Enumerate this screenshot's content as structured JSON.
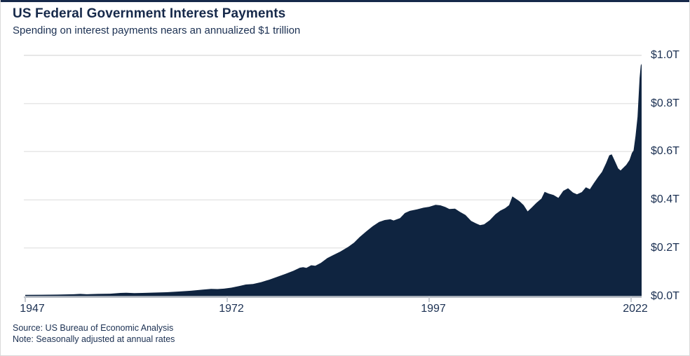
{
  "card": {
    "title": "US Federal Government Interest Payments",
    "subtitle": "Spending on interest payments nears an annualized $1 trillion",
    "source_line": "Source: US Bureau of Economic Analysis",
    "note_line": "Note: Seasonally adjusted at annual rates"
  },
  "colors": {
    "accent_bar": "#16294a",
    "area_fill": "#0f2440",
    "text_navy": "#1b3052",
    "gridline": "#e7e7e7",
    "axis_line": "#b8bdc4",
    "tick_mark": "#c7cbd1",
    "card_border": "#d9d9d9"
  },
  "chart_data": {
    "type": "area",
    "title": "US Federal Government Interest Payments",
    "subtitle": "Spending on interest payments nears an annualized $1 trillion",
    "unit": "trillions of US dollars, seasonally adjusted annual rate",
    "grid": "horizontal-on",
    "legend": "none",
    "x_axis": {
      "range": [
        1947,
        2023.3
      ],
      "ticks": [
        {
          "label": "1947",
          "year": 1947
        },
        {
          "label": "1972",
          "year": 1972
        },
        {
          "label": "1997",
          "year": 1997
        },
        {
          "label": "2022",
          "year": 2022
        }
      ]
    },
    "y_axis": {
      "range": [
        0,
        1.0
      ],
      "ticks": [
        {
          "label": "$0.0T",
          "value": 0.0
        },
        {
          "label": "$0.2T",
          "value": 0.2
        },
        {
          "label": "$0.4T",
          "value": 0.4
        },
        {
          "label": "$0.6T",
          "value": 0.6
        },
        {
          "label": "$0.8T",
          "value": 0.8
        },
        {
          "label": "$1.0T",
          "value": 1.0
        }
      ]
    },
    "series": [
      {
        "name": "Federal government interest payments",
        "points": [
          [
            1947.0,
            0.005
          ],
          [
            1949.0,
            0.0055
          ],
          [
            1951.0,
            0.006
          ],
          [
            1953.0,
            0.0075
          ],
          [
            1953.8,
            0.009
          ],
          [
            1954.6,
            0.0075
          ],
          [
            1956.0,
            0.009
          ],
          [
            1957.5,
            0.01
          ],
          [
            1958.8,
            0.013
          ],
          [
            1959.5,
            0.014
          ],
          [
            1960.5,
            0.0125
          ],
          [
            1961.5,
            0.013
          ],
          [
            1963.0,
            0.0145
          ],
          [
            1964.5,
            0.016
          ],
          [
            1966.0,
            0.019
          ],
          [
            1967.5,
            0.022
          ],
          [
            1969.0,
            0.027
          ],
          [
            1970.0,
            0.03
          ],
          [
            1970.8,
            0.029
          ],
          [
            1971.6,
            0.031
          ],
          [
            1972.5,
            0.035
          ],
          [
            1973.5,
            0.042
          ],
          [
            1974.3,
            0.048
          ],
          [
            1975.2,
            0.05
          ],
          [
            1976.2,
            0.058
          ],
          [
            1977.2,
            0.068
          ],
          [
            1978.2,
            0.08
          ],
          [
            1979.2,
            0.092
          ],
          [
            1980.2,
            0.105
          ],
          [
            1981.0,
            0.118
          ],
          [
            1981.4,
            0.12
          ],
          [
            1981.8,
            0.117
          ],
          [
            1982.4,
            0.128
          ],
          [
            1982.9,
            0.126
          ],
          [
            1983.6,
            0.138
          ],
          [
            1984.4,
            0.158
          ],
          [
            1985.1,
            0.17
          ],
          [
            1986.0,
            0.185
          ],
          [
            1987.0,
            0.205
          ],
          [
            1987.7,
            0.222
          ],
          [
            1988.4,
            0.245
          ],
          [
            1989.2,
            0.268
          ],
          [
            1990.0,
            0.29
          ],
          [
            1990.8,
            0.308
          ],
          [
            1991.5,
            0.316
          ],
          [
            1992.2,
            0.319
          ],
          [
            1992.6,
            0.314
          ],
          [
            1993.4,
            0.324
          ],
          [
            1994.0,
            0.345
          ],
          [
            1994.6,
            0.354
          ],
          [
            1995.5,
            0.36
          ],
          [
            1996.3,
            0.367
          ],
          [
            1997.0,
            0.371
          ],
          [
            1997.8,
            0.379
          ],
          [
            1998.4,
            0.377
          ],
          [
            1999.0,
            0.37
          ],
          [
            1999.5,
            0.362
          ],
          [
            2000.2,
            0.363
          ],
          [
            2000.8,
            0.35
          ],
          [
            2001.5,
            0.337
          ],
          [
            2002.2,
            0.312
          ],
          [
            2002.8,
            0.302
          ],
          [
            2003.3,
            0.295
          ],
          [
            2003.8,
            0.298
          ],
          [
            2004.5,
            0.315
          ],
          [
            2005.2,
            0.34
          ],
          [
            2005.8,
            0.355
          ],
          [
            2006.4,
            0.365
          ],
          [
            2006.9,
            0.378
          ],
          [
            2007.3,
            0.414
          ],
          [
            2007.7,
            0.405
          ],
          [
            2008.2,
            0.394
          ],
          [
            2008.7,
            0.378
          ],
          [
            2009.2,
            0.352
          ],
          [
            2009.7,
            0.368
          ],
          [
            2010.3,
            0.388
          ],
          [
            2010.9,
            0.405
          ],
          [
            2011.3,
            0.433
          ],
          [
            2011.8,
            0.426
          ],
          [
            2012.4,
            0.42
          ],
          [
            2013.0,
            0.408
          ],
          [
            2013.6,
            0.437
          ],
          [
            2014.2,
            0.448
          ],
          [
            2014.8,
            0.43
          ],
          [
            2015.3,
            0.423
          ],
          [
            2015.9,
            0.432
          ],
          [
            2016.4,
            0.452
          ],
          [
            2016.9,
            0.444
          ],
          [
            2017.4,
            0.47
          ],
          [
            2017.9,
            0.494
          ],
          [
            2018.4,
            0.516
          ],
          [
            2018.9,
            0.552
          ],
          [
            2019.3,
            0.585
          ],
          [
            2019.6,
            0.589
          ],
          [
            2020.0,
            0.56
          ],
          [
            2020.4,
            0.53
          ],
          [
            2020.7,
            0.522
          ],
          [
            2021.0,
            0.532
          ],
          [
            2021.4,
            0.545
          ],
          [
            2021.8,
            0.565
          ],
          [
            2022.1,
            0.595
          ],
          [
            2022.3,
            0.605
          ],
          [
            2022.55,
            0.665
          ],
          [
            2022.8,
            0.745
          ],
          [
            2023.05,
            0.905
          ],
          [
            2023.2,
            0.958
          ],
          [
            2023.3,
            0.965
          ]
        ]
      }
    ]
  }
}
